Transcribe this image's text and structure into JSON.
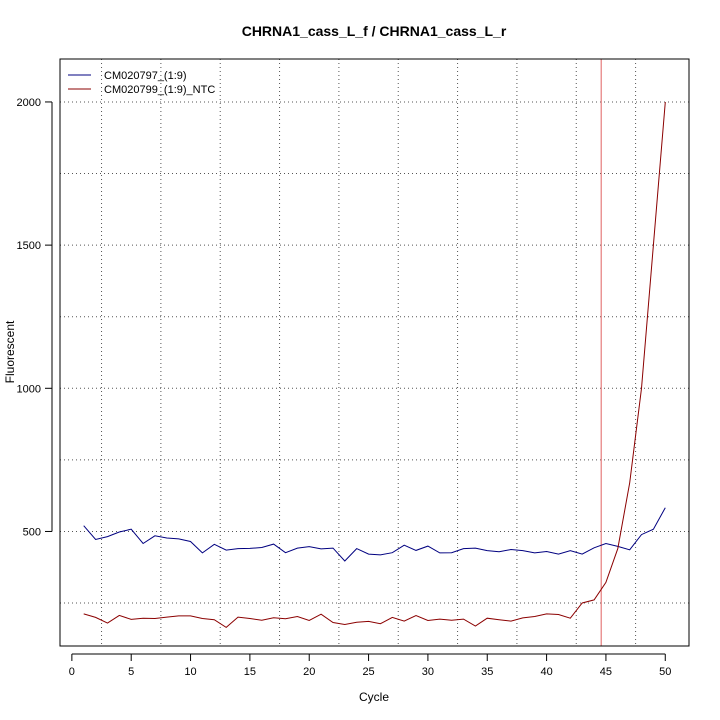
{
  "chart_data": {
    "type": "line",
    "title": "CHRNA1_cass_L_f / CHRNA1_cass_L_r",
    "xlabel": "Cycle",
    "ylabel": "Fluorescent",
    "xlim": [
      -1,
      52
    ],
    "ylim": [
      100,
      2150
    ],
    "x_ticks": [
      0,
      5,
      10,
      15,
      20,
      25,
      30,
      35,
      40,
      45,
      50
    ],
    "y_ticks": [
      500,
      1000,
      1500,
      2000
    ],
    "legend_position": "top-left",
    "grid": true,
    "threshold_cycle": 44.6,
    "series": [
      {
        "name": "CM020797_(1:9)",
        "color": "#000080",
        "x": [
          1,
          2,
          3,
          4,
          5,
          6,
          7,
          8,
          9,
          10,
          11,
          12,
          13,
          14,
          15,
          16,
          17,
          18,
          19,
          20,
          21,
          22,
          23,
          24,
          25,
          26,
          27,
          28,
          29,
          30,
          31,
          32,
          33,
          34,
          35,
          36,
          37,
          38,
          39,
          40,
          41,
          42,
          43,
          44,
          45,
          46,
          47,
          48,
          49,
          50
        ],
        "values": [
          520,
          472,
          482,
          498,
          508,
          458,
          485,
          477,
          474,
          465,
          425,
          455,
          435,
          440,
          441,
          444,
          456,
          426,
          442,
          447,
          439,
          442,
          397,
          440,
          421,
          418,
          426,
          452,
          434,
          449,
          425,
          426,
          440,
          442,
          433,
          429,
          437,
          433,
          425,
          430,
          421,
          433,
          421,
          443,
          458,
          448,
          436,
          489,
          508,
          583
        ]
      },
      {
        "name": "CM020799_(1:9)_NTC",
        "color": "#8b0000",
        "x": [
          1,
          2,
          3,
          4,
          5,
          6,
          7,
          8,
          9,
          10,
          11,
          12,
          13,
          14,
          15,
          16,
          17,
          18,
          19,
          20,
          21,
          22,
          23,
          24,
          25,
          26,
          27,
          28,
          29,
          30,
          31,
          32,
          33,
          34,
          35,
          36,
          37,
          38,
          39,
          40,
          41,
          42,
          43,
          44,
          45,
          46,
          47,
          48,
          49,
          50
        ],
        "values": [
          212,
          200,
          180,
          207,
          193,
          197,
          196,
          201,
          205,
          205,
          196,
          192,
          165,
          201,
          196,
          190,
          199,
          195,
          203,
          189,
          211,
          182,
          175,
          183,
          186,
          178,
          200,
          187,
          206,
          189,
          194,
          190,
          194,
          170,
          197,
          192,
          187,
          198,
          203,
          212,
          210,
          197,
          250,
          261,
          322,
          440,
          670,
          1000,
          1500,
          2000
        ]
      }
    ]
  }
}
